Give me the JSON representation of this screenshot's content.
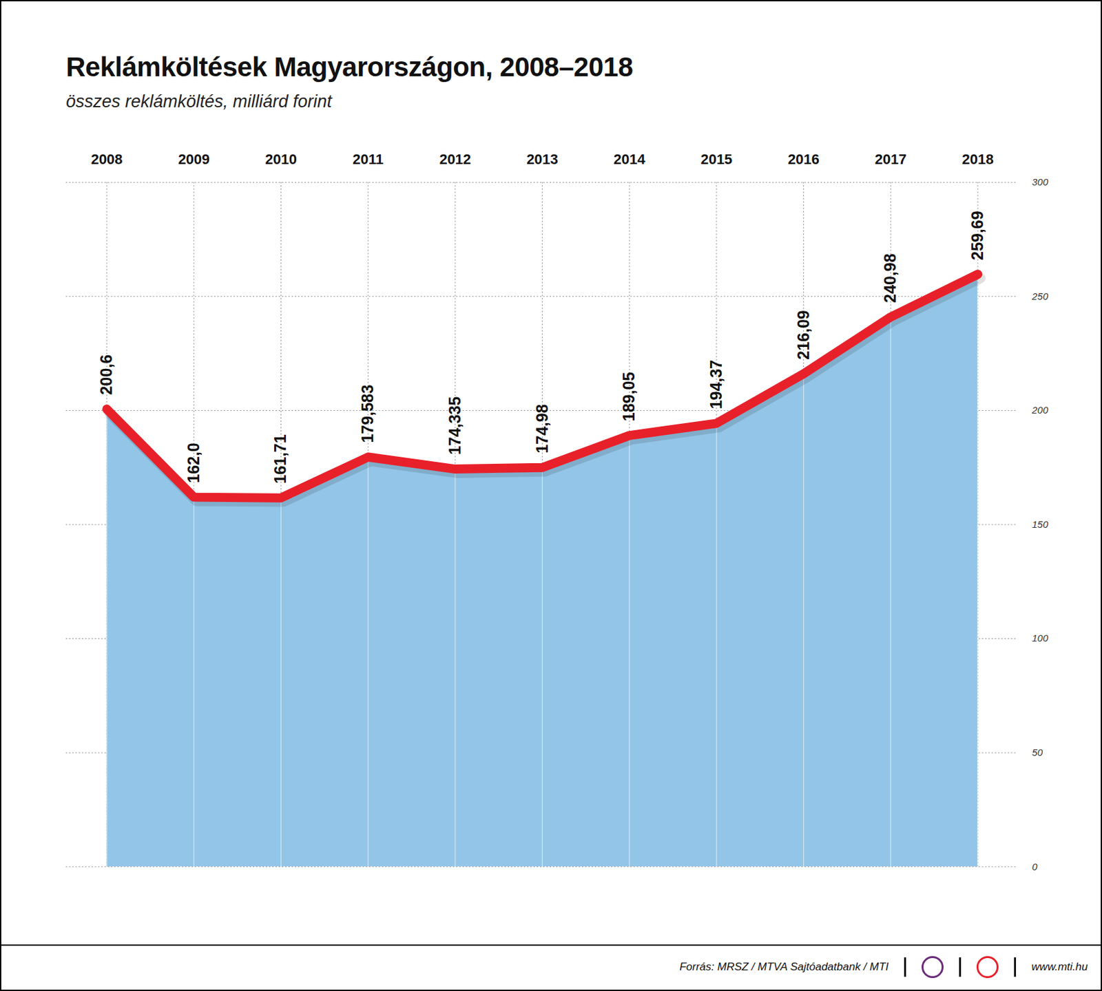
{
  "chart_data": {
    "type": "line",
    "title": "Reklámköltések Magyarországon, 2008–2018",
    "subtitle": "összes reklámköltés, milliárd forint",
    "source": "Forrás: MRSZ / MTVA Sajtóadatbank / MTI",
    "url": "www.mti.hu",
    "categories": [
      "2008",
      "2009",
      "2010",
      "2011",
      "2012",
      "2013",
      "2014",
      "2015",
      "2016",
      "2017",
      "2018"
    ],
    "values": [
      200.6,
      162.0,
      161.71,
      179.583,
      174.335,
      174.98,
      189.05,
      194.37,
      216.09,
      240.98,
      259.69
    ],
    "value_labels": [
      "200,6",
      "162,0",
      "161,71",
      "179,583",
      "174,335",
      "174,98",
      "189,05",
      "194,37",
      "216,09",
      "240,98",
      "259,69"
    ],
    "color": "#e8202a",
    "ylim": [
      0,
      300
    ],
    "yticks": [
      0,
      50,
      100,
      150,
      200,
      250,
      300
    ],
    "grid": true,
    "data_labels": true
  }
}
